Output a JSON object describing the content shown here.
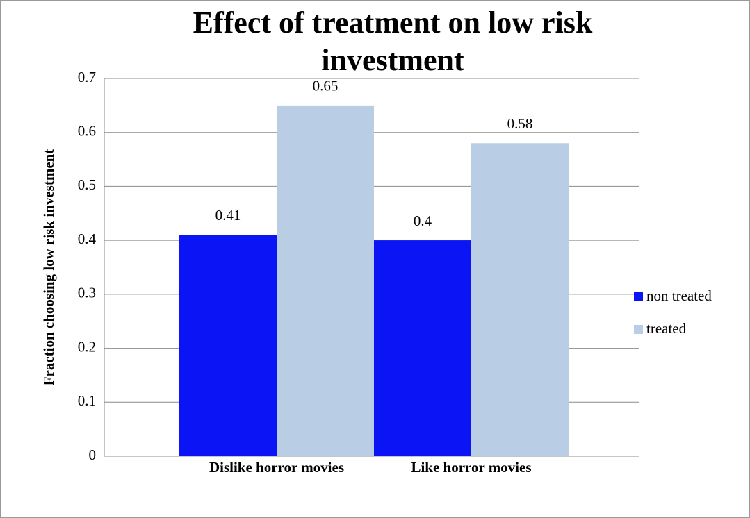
{
  "chart_data": {
    "type": "bar",
    "title": "Effect of treatment on low risk investment",
    "y_label": "Fraction choosing low risk investment",
    "categories": [
      "Dislike horror movies",
      "Like horror movies"
    ],
    "series": [
      {
        "name": "non treated",
        "color": "#0a14f5",
        "values": [
          0.41,
          0.4
        ]
      },
      {
        "name": "treated",
        "color": "#b9cde5",
        "values": [
          0.65,
          0.58
        ]
      }
    ],
    "ylim": [
      0,
      0.7
    ],
    "yticks": [
      0,
      0.1,
      0.2,
      0.3,
      0.4,
      0.5,
      0.6,
      0.7
    ],
    "grid": true,
    "legend": "right"
  }
}
